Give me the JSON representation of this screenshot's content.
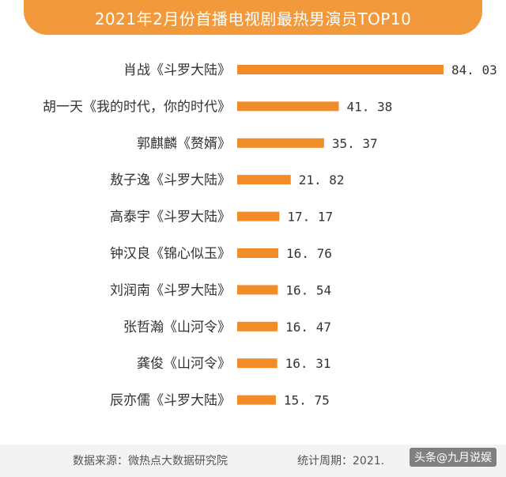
{
  "colors": {
    "bar": "#f28c28",
    "banner": "#f29a3b"
  },
  "chart_data": {
    "type": "bar",
    "orientation": "horizontal",
    "title": "2021年2月份首播电视剧最热男演员TOP10",
    "categories": [
      "肖战《斗罗大陆》",
      "胡一天《我的时代，你的时代》",
      "郭麒麟《赘婿》",
      "敖子逸《斗罗大陆》",
      "高泰宇《斗罗大陆》",
      "钟汉良《锦心似玉》",
      "刘润南《斗罗大陆》",
      "张哲瀚《山河令》",
      "龚俊《山河令》",
      "辰亦儒《斗罗大陆》"
    ],
    "values": [
      84.03,
      41.38,
      35.37,
      21.82,
      17.17,
      16.76,
      16.54,
      16.47,
      16.31,
      15.75
    ],
    "value_labels": [
      "84. 03",
      "41. 38",
      "35. 37",
      "21. 82",
      "17. 17",
      "16. 76",
      "16. 54",
      "16. 47",
      "16. 31",
      "15. 75"
    ],
    "xlim": [
      0,
      84.03
    ],
    "grid": false,
    "legend": "none"
  },
  "footer": {
    "source": "数据来源：微热点大数据研究院",
    "period": "统计周期：2021."
  },
  "watermark": "头条@九月说娱"
}
